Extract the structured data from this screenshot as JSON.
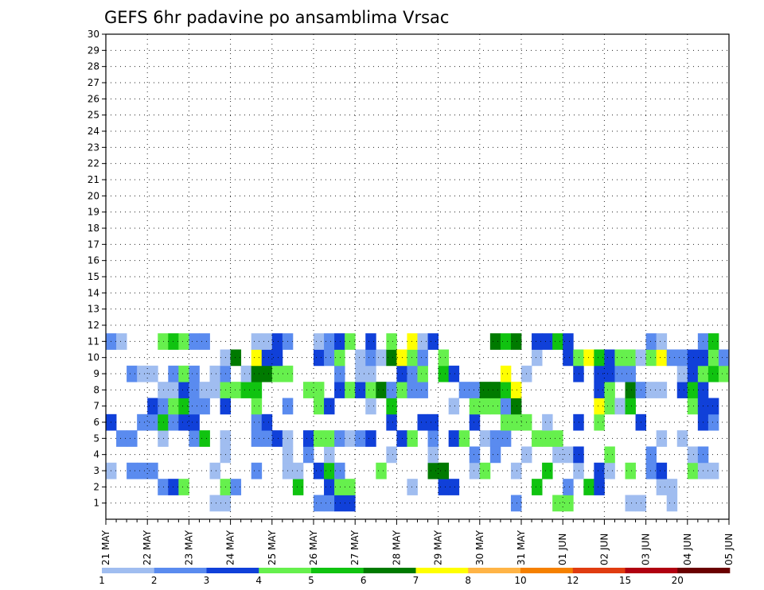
{
  "chart_data": {
    "type": "heatmap",
    "title": "GEFS 6hr padavine po ansamblima Vrsac",
    "xlabel": "",
    "ylabel": "",
    "x_tick_labels": [
      "21 MAY",
      "22 MAY",
      "23 MAY",
      "24 MAY",
      "25 MAY",
      "26 MAY",
      "27 MAY",
      "28 MAY",
      "29 MAY",
      "30 MAY",
      "31 MAY",
      "01 JUN",
      "02 JUN",
      "03 JUN",
      "04 JUN",
      "05 JUN"
    ],
    "x_steps_per_day": 4,
    "y_ticks": [
      1,
      2,
      3,
      4,
      5,
      6,
      7,
      8,
      9,
      10,
      11,
      12,
      13,
      14,
      15,
      16,
      17,
      18,
      19,
      20,
      21,
      22,
      23,
      24,
      25,
      26,
      27,
      28,
      29,
      30
    ],
    "ylim": [
      0,
      30
    ],
    "grid": true,
    "legend_placement": "bottom",
    "legend": {
      "labels": [
        "1",
        "2",
        "3",
        "4",
        "5",
        "6",
        "7",
        "8",
        "10",
        "12",
        "15",
        "20"
      ],
      "colors": [
        "#a0bdf0",
        "#5a8bef",
        "#1040d9",
        "#66f04d",
        "#10c310",
        "#007a00",
        "#ffff00",
        "#ffb446",
        "#f58000",
        "#e03c10",
        "#b00010",
        "#6a0000"
      ]
    },
    "columns_count": 60,
    "cells": [
      [
        11,
        1,
        1
      ],
      [
        12,
        1,
        1
      ],
      [
        21,
        1,
        2
      ],
      [
        22,
        1,
        2
      ],
      [
        23,
        1,
        3
      ],
      [
        24,
        1,
        3
      ],
      [
        40,
        1,
        2
      ],
      [
        44,
        1,
        4
      ],
      [
        45,
        1,
        4
      ],
      [
        51,
        1,
        1
      ],
      [
        52,
        1,
        1
      ],
      [
        55,
        1,
        1
      ],
      [
        6,
        2,
        2
      ],
      [
        7,
        2,
        3
      ],
      [
        8,
        2,
        4
      ],
      [
        12,
        2,
        4
      ],
      [
        13,
        2,
        2
      ],
      [
        19,
        2,
        5
      ],
      [
        22,
        2,
        3
      ],
      [
        23,
        2,
        4
      ],
      [
        24,
        2,
        4
      ],
      [
        30,
        2,
        1
      ],
      [
        33,
        2,
        3
      ],
      [
        34,
        2,
        3
      ],
      [
        42,
        2,
        5
      ],
      [
        45,
        2,
        2
      ],
      [
        47,
        2,
        5
      ],
      [
        48,
        2,
        3
      ],
      [
        54,
        2,
        1
      ],
      [
        55,
        2,
        1
      ],
      [
        1,
        3,
        1
      ],
      [
        3,
        3,
        2
      ],
      [
        4,
        3,
        2
      ],
      [
        5,
        3,
        2
      ],
      [
        11,
        3,
        1
      ],
      [
        15,
        3,
        2
      ],
      [
        18,
        3,
        1
      ],
      [
        19,
        3,
        1
      ],
      [
        21,
        3,
        3
      ],
      [
        22,
        3,
        5
      ],
      [
        23,
        3,
        2
      ],
      [
        27,
        3,
        4
      ],
      [
        32,
        3,
        6
      ],
      [
        33,
        3,
        6
      ],
      [
        36,
        3,
        1
      ],
      [
        37,
        3,
        4
      ],
      [
        40,
        3,
        1
      ],
      [
        43,
        3,
        5
      ],
      [
        46,
        3,
        1
      ],
      [
        48,
        3,
        3
      ],
      [
        49,
        3,
        1
      ],
      [
        51,
        3,
        4
      ],
      [
        53,
        3,
        2
      ],
      [
        54,
        3,
        3
      ],
      [
        57,
        3,
        4
      ],
      [
        58,
        3,
        1
      ],
      [
        59,
        3,
        1
      ],
      [
        12,
        4,
        1
      ],
      [
        18,
        4,
        1
      ],
      [
        20,
        4,
        2
      ],
      [
        22,
        4,
        1
      ],
      [
        28,
        4,
        1
      ],
      [
        32,
        4,
        1
      ],
      [
        36,
        4,
        2
      ],
      [
        38,
        4,
        2
      ],
      [
        41,
        4,
        1
      ],
      [
        44,
        4,
        1
      ],
      [
        45,
        4,
        1
      ],
      [
        46,
        4,
        3
      ],
      [
        49,
        4,
        4
      ],
      [
        53,
        4,
        2
      ],
      [
        57,
        4,
        1
      ],
      [
        58,
        4,
        2
      ],
      [
        2,
        5,
        2
      ],
      [
        3,
        5,
        2
      ],
      [
        6,
        5,
        1
      ],
      [
        9,
        5,
        2
      ],
      [
        10,
        5,
        5
      ],
      [
        12,
        5,
        1
      ],
      [
        15,
        5,
        2
      ],
      [
        16,
        5,
        2
      ],
      [
        17,
        5,
        3
      ],
      [
        18,
        5,
        1
      ],
      [
        20,
        5,
        3
      ],
      [
        21,
        5,
        4
      ],
      [
        22,
        5,
        4
      ],
      [
        23,
        5,
        2
      ],
      [
        24,
        5,
        1
      ],
      [
        25,
        5,
        2
      ],
      [
        26,
        5,
        3
      ],
      [
        29,
        5,
        3
      ],
      [
        30,
        5,
        4
      ],
      [
        32,
        5,
        2
      ],
      [
        34,
        5,
        3
      ],
      [
        35,
        5,
        4
      ],
      [
        37,
        5,
        1
      ],
      [
        38,
        5,
        2
      ],
      [
        39,
        5,
        2
      ],
      [
        42,
        5,
        4
      ],
      [
        43,
        5,
        4
      ],
      [
        44,
        5,
        4
      ],
      [
        54,
        5,
        1
      ],
      [
        56,
        5,
        1
      ],
      [
        1,
        6,
        3
      ],
      [
        4,
        6,
        2
      ],
      [
        5,
        6,
        2
      ],
      [
        6,
        6,
        5
      ],
      [
        7,
        6,
        2
      ],
      [
        8,
        6,
        3
      ],
      [
        9,
        6,
        3
      ],
      [
        15,
        6,
        2
      ],
      [
        16,
        6,
        3
      ],
      [
        28,
        6,
        3
      ],
      [
        31,
        6,
        3
      ],
      [
        32,
        6,
        3
      ],
      [
        36,
        6,
        3
      ],
      [
        39,
        6,
        4
      ],
      [
        40,
        6,
        4
      ],
      [
        41,
        6,
        4
      ],
      [
        43,
        6,
        1
      ],
      [
        46,
        6,
        3
      ],
      [
        48,
        6,
        4
      ],
      [
        52,
        6,
        3
      ],
      [
        58,
        6,
        3
      ],
      [
        59,
        6,
        2
      ],
      [
        5,
        7,
        3
      ],
      [
        6,
        7,
        2
      ],
      [
        7,
        7,
        4
      ],
      [
        8,
        7,
        5
      ],
      [
        9,
        7,
        2
      ],
      [
        10,
        7,
        2
      ],
      [
        12,
        7,
        3
      ],
      [
        15,
        7,
        4
      ],
      [
        18,
        7,
        2
      ],
      [
        21,
        7,
        4
      ],
      [
        22,
        7,
        3
      ],
      [
        26,
        7,
        1
      ],
      [
        28,
        7,
        5
      ],
      [
        34,
        7,
        1
      ],
      [
        36,
        7,
        4
      ],
      [
        37,
        7,
        4
      ],
      [
        38,
        7,
        4
      ],
      [
        39,
        7,
        2
      ],
      [
        40,
        7,
        6
      ],
      [
        48,
        7,
        7
      ],
      [
        49,
        7,
        4
      ],
      [
        50,
        7,
        1
      ],
      [
        51,
        7,
        5
      ],
      [
        57,
        7,
        4
      ],
      [
        58,
        7,
        3
      ],
      [
        59,
        7,
        3
      ],
      [
        6,
        8,
        1
      ],
      [
        7,
        8,
        1
      ],
      [
        8,
        8,
        3
      ],
      [
        9,
        8,
        2
      ],
      [
        10,
        8,
        1
      ],
      [
        11,
        8,
        1
      ],
      [
        12,
        8,
        4
      ],
      [
        13,
        8,
        4
      ],
      [
        14,
        8,
        5
      ],
      [
        15,
        8,
        5
      ],
      [
        20,
        8,
        4
      ],
      [
        21,
        8,
        4
      ],
      [
        23,
        8,
        3
      ],
      [
        24,
        8,
        4
      ],
      [
        25,
        8,
        3
      ],
      [
        26,
        8,
        4
      ],
      [
        27,
        8,
        6
      ],
      [
        28,
        8,
        2
      ],
      [
        29,
        8,
        4
      ],
      [
        30,
        8,
        2
      ],
      [
        31,
        8,
        2
      ],
      [
        35,
        8,
        2
      ],
      [
        36,
        8,
        2
      ],
      [
        37,
        8,
        6
      ],
      [
        38,
        8,
        6
      ],
      [
        39,
        8,
        5
      ],
      [
        40,
        8,
        7
      ],
      [
        48,
        8,
        3
      ],
      [
        49,
        8,
        4
      ],
      [
        51,
        8,
        6
      ],
      [
        52,
        8,
        2
      ],
      [
        53,
        8,
        1
      ],
      [
        54,
        8,
        1
      ],
      [
        56,
        8,
        3
      ],
      [
        57,
        8,
        5
      ],
      [
        58,
        8,
        3
      ],
      [
        3,
        9,
        2
      ],
      [
        4,
        9,
        1
      ],
      [
        5,
        9,
        1
      ],
      [
        7,
        9,
        2
      ],
      [
        8,
        9,
        4
      ],
      [
        9,
        9,
        2
      ],
      [
        11,
        9,
        1
      ],
      [
        12,
        9,
        2
      ],
      [
        14,
        9,
        1
      ],
      [
        15,
        9,
        6
      ],
      [
        16,
        9,
        6
      ],
      [
        17,
        9,
        4
      ],
      [
        18,
        9,
        4
      ],
      [
        23,
        9,
        2
      ],
      [
        25,
        9,
        1
      ],
      [
        26,
        9,
        1
      ],
      [
        29,
        9,
        3
      ],
      [
        30,
        9,
        2
      ],
      [
        31,
        9,
        4
      ],
      [
        33,
        9,
        5
      ],
      [
        34,
        9,
        3
      ],
      [
        39,
        9,
        7
      ],
      [
        41,
        9,
        1
      ],
      [
        46,
        9,
        3
      ],
      [
        48,
        9,
        3
      ],
      [
        49,
        9,
        3
      ],
      [
        50,
        9,
        2
      ],
      [
        51,
        9,
        2
      ],
      [
        56,
        9,
        1
      ],
      [
        57,
        9,
        3
      ],
      [
        58,
        9,
        4
      ],
      [
        59,
        9,
        5
      ],
      [
        60,
        9,
        4
      ],
      [
        12,
        10,
        1
      ],
      [
        13,
        10,
        6
      ],
      [
        15,
        10,
        7
      ],
      [
        16,
        10,
        3
      ],
      [
        17,
        10,
        3
      ],
      [
        21,
        10,
        3
      ],
      [
        22,
        10,
        2
      ],
      [
        23,
        10,
        4
      ],
      [
        25,
        10,
        1
      ],
      [
        26,
        10,
        2
      ],
      [
        27,
        10,
        1
      ],
      [
        28,
        10,
        6
      ],
      [
        29,
        10,
        7
      ],
      [
        30,
        10,
        4
      ],
      [
        31,
        10,
        2
      ],
      [
        33,
        10,
        4
      ],
      [
        42,
        10,
        1
      ],
      [
        45,
        10,
        3
      ],
      [
        46,
        10,
        4
      ],
      [
        47,
        10,
        7
      ],
      [
        48,
        10,
        5
      ],
      [
        49,
        10,
        3
      ],
      [
        50,
        10,
        4
      ],
      [
        51,
        10,
        4
      ],
      [
        52,
        10,
        1
      ],
      [
        53,
        10,
        4
      ],
      [
        54,
        10,
        7
      ],
      [
        55,
        10,
        2
      ],
      [
        56,
        10,
        2
      ],
      [
        57,
        10,
        3
      ],
      [
        58,
        10,
        3
      ],
      [
        59,
        10,
        4
      ],
      [
        60,
        10,
        2
      ],
      [
        1,
        11,
        2
      ],
      [
        2,
        11,
        1
      ],
      [
        6,
        11,
        4
      ],
      [
        7,
        11,
        5
      ],
      [
        8,
        11,
        4
      ],
      [
        9,
        11,
        2
      ],
      [
        10,
        11,
        2
      ],
      [
        15,
        11,
        1
      ],
      [
        16,
        11,
        1
      ],
      [
        17,
        11,
        3
      ],
      [
        18,
        11,
        2
      ],
      [
        21,
        11,
        1
      ],
      [
        22,
        11,
        2
      ],
      [
        23,
        11,
        3
      ],
      [
        24,
        11,
        4
      ],
      [
        26,
        11,
        3
      ],
      [
        28,
        11,
        4
      ],
      [
        30,
        11,
        7
      ],
      [
        31,
        11,
        1
      ],
      [
        32,
        11,
        3
      ],
      [
        38,
        11,
        6
      ],
      [
        39,
        11,
        5
      ],
      [
        40,
        11,
        6
      ],
      [
        42,
        11,
        3
      ],
      [
        43,
        11,
        3
      ],
      [
        44,
        11,
        5
      ],
      [
        45,
        11,
        3
      ],
      [
        53,
        11,
        2
      ],
      [
        54,
        11,
        1
      ],
      [
        58,
        11,
        2
      ],
      [
        59,
        11,
        5
      ]
    ]
  }
}
